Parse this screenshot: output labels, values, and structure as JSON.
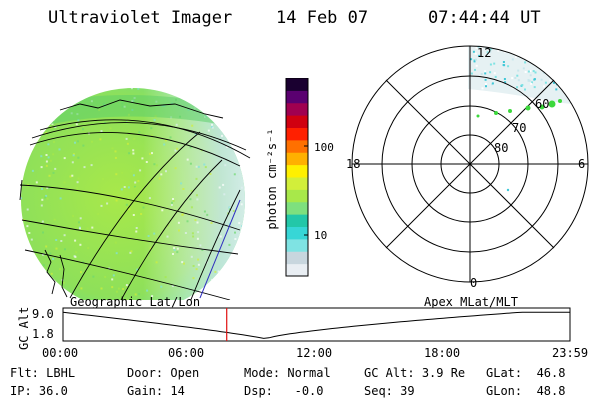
{
  "header": {
    "title": "Ultraviolet Imager",
    "date": "14 Feb 07",
    "time": "07:44:44 UT"
  },
  "colorbar": {
    "unit_label": "photon cm⁻²s⁻¹",
    "tick_labels": [
      "100",
      "10"
    ],
    "colors": [
      "#e9eef3",
      "#c8d6de",
      "#7fe3e3",
      "#37d6d6",
      "#23c7a8",
      "#7ee07e",
      "#a8e84a",
      "#d2ef3a",
      "#fff000",
      "#ffb000",
      "#ff7000",
      "#ff2000",
      "#d00010",
      "#a00050",
      "#5a0070",
      "#1a0030"
    ]
  },
  "left_panel": {
    "label": "Geographic Lat/Lon",
    "grid_color": "#000000",
    "terminator_color": "#3030c0"
  },
  "right_panel": {
    "label": "Apex MLat/MLT",
    "mlt_labels": {
      "top": "12",
      "left": "18",
      "right": "6",
      "bottom": "0"
    },
    "lat_labels": [
      "60",
      "70",
      "80"
    ]
  },
  "timeline": {
    "ylabel": "GC Alt",
    "y_ticks": [
      "9.0",
      "1.8"
    ],
    "x_ticks": [
      "00:00",
      "06:00",
      "12:00",
      "18:00",
      "23:59"
    ],
    "marker_color": "#e01010",
    "marker_hour": 7.75
  },
  "status": {
    "row1": [
      {
        "key": "Flt:",
        "value": "LBHL"
      },
      {
        "key": "Door:",
        "value": "Open"
      },
      {
        "key": "Mode:",
        "value": "Normal"
      },
      {
        "key": "GC Alt:",
        "value": "3.9 Re"
      },
      {
        "key": "GLat:",
        "value": "46.8"
      }
    ],
    "row2": [
      {
        "key": "IP:",
        "value": "36.0"
      },
      {
        "key": "Gain:",
        "value": "14"
      },
      {
        "key": "Dsp:",
        "value": "-0.0"
      },
      {
        "key": "Seq:",
        "value": "39"
      },
      {
        "key": "GLon:",
        "value": "48.8"
      }
    ]
  }
}
